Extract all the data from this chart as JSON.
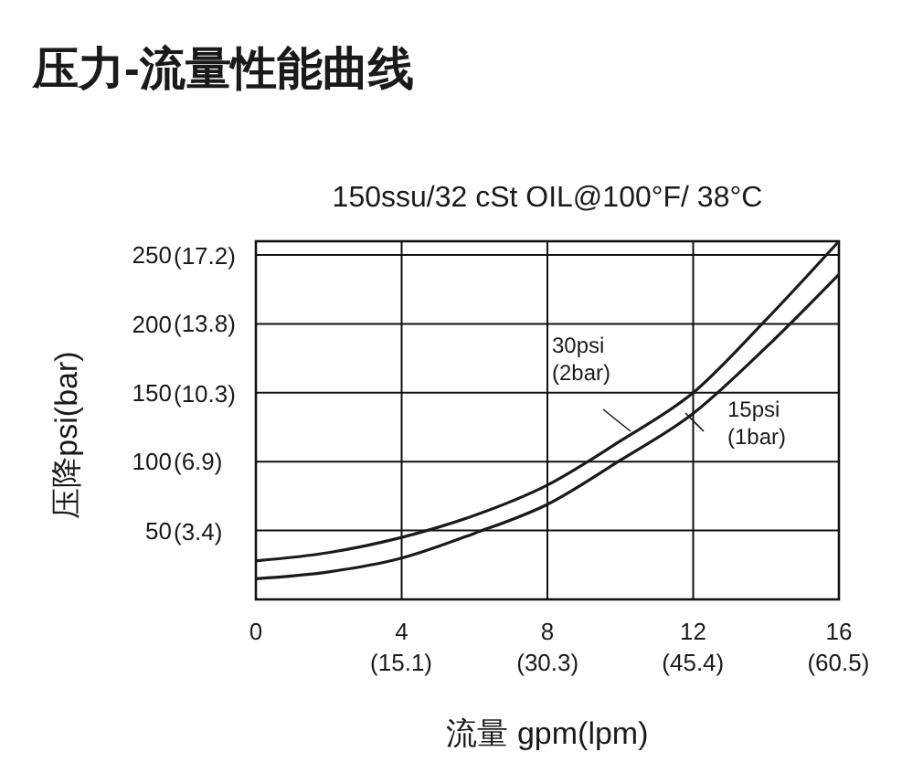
{
  "chart_data": {
    "type": "line",
    "title": "压力-流量性能曲线",
    "subtitle": "150ssu/32 cSt OIL@100°F/ 38°C",
    "xlabel": "流量 gpm(lpm)",
    "ylabel": "压降psi(bar)",
    "x": [
      0,
      2,
      4,
      6,
      8,
      10,
      12,
      14,
      16
    ],
    "series": [
      {
        "name": "30psi (2bar)",
        "color": "#1a1a1a",
        "values": [
          28,
          34,
          45,
          61,
          83,
          115,
          150,
          203,
          260
        ]
      },
      {
        "name": "15psi (1bar)",
        "color": "#1a1a1a",
        "values": [
          15,
          20,
          30,
          48,
          69,
          101,
          135,
          183,
          236
        ]
      }
    ],
    "xlim": [
      0,
      16
    ],
    "ylim": [
      0,
      260
    ],
    "xticks": [
      0,
      4,
      8,
      12,
      16
    ],
    "x2lim": [
      0,
      60.56
    ],
    "x2ticks": [
      {
        "value": 15.1,
        "label": "(15.1)"
      },
      {
        "value": 30.3,
        "label": "(30.3)"
      },
      {
        "value": 45.4,
        "label": "(45.4)"
      },
      {
        "value": 60.5,
        "label": "(60.5)"
      }
    ],
    "yticks": [
      50,
      100,
      150,
      200,
      250
    ],
    "y2lim": [
      0,
      17.93
    ],
    "y2ticks": [
      {
        "value": 3.4,
        "label": "(3.4)"
      },
      {
        "value": 6.9,
        "label": "(6.9)"
      },
      {
        "value": 10.3,
        "label": "(10.3)"
      },
      {
        "value": 13.8,
        "label": "(13.8)"
      },
      {
        "value": 17.2,
        "label": "(17.2)"
      }
    ],
    "grid": true,
    "marker": "none",
    "line_style": "solid"
  }
}
